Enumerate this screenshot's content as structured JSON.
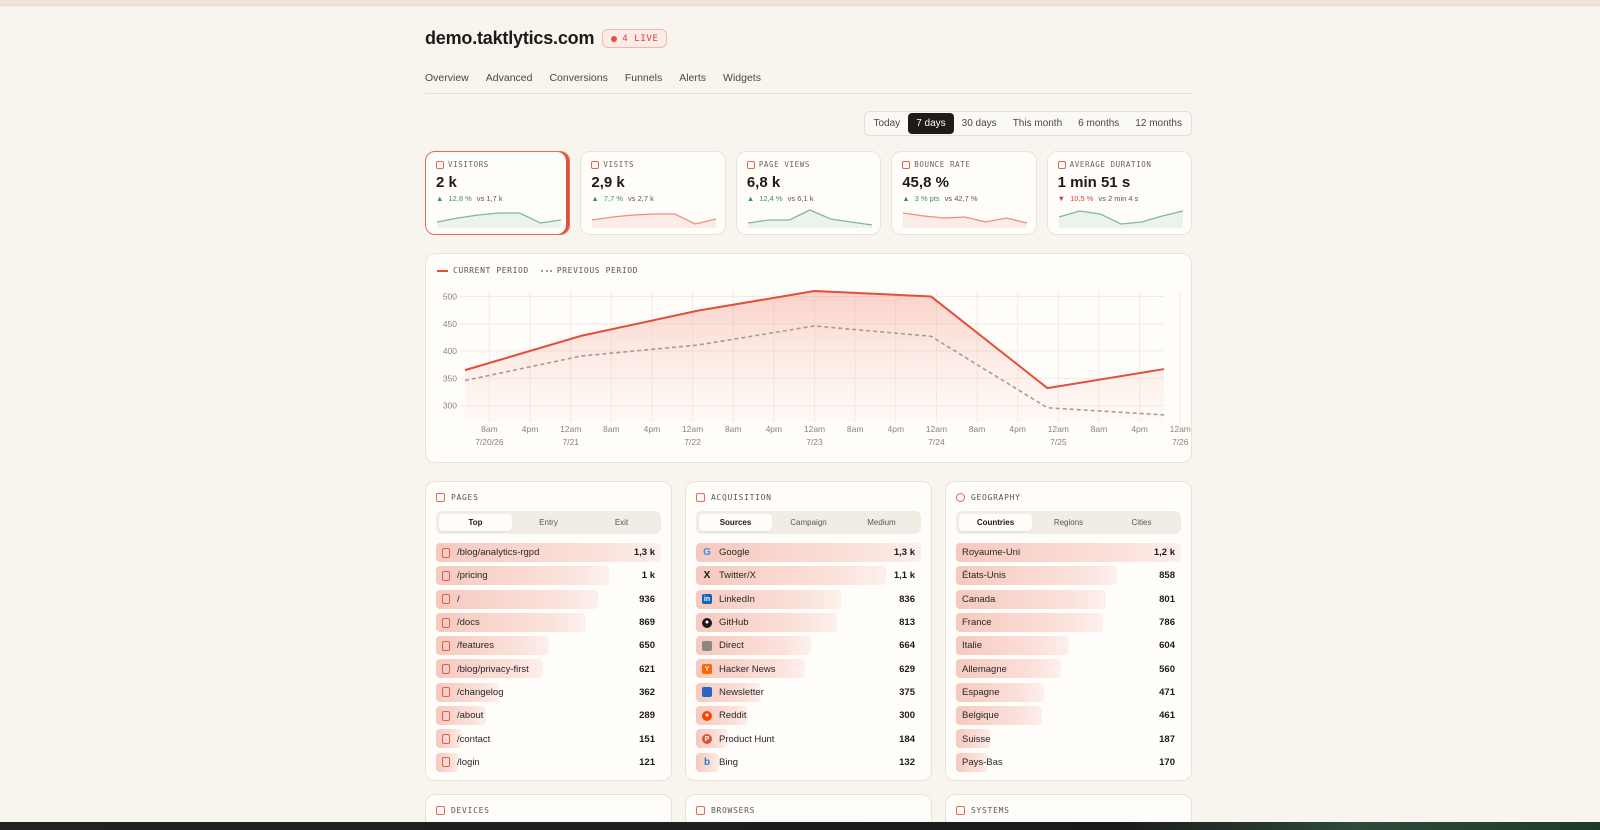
{
  "header": {
    "site": "demo.taktlytics.com",
    "live": "4 LIVE"
  },
  "nav": [
    "Overview",
    "Advanced",
    "Conversions",
    "Funnels",
    "Alerts",
    "Widgets"
  ],
  "ranges": {
    "items": [
      "Today",
      "7 days",
      "30 days",
      "This month",
      "6 months",
      "12 months"
    ],
    "selected": "7 days"
  },
  "kpis": [
    {
      "label": "VISITORS",
      "value": "2 k",
      "delta": "12,8 %",
      "direction": "up",
      "compare": "vs 1,7 k",
      "active": true,
      "spark": [
        4,
        8,
        11,
        13,
        13,
        3,
        6
      ]
    },
    {
      "label": "VISITS",
      "value": "2,9 k",
      "delta": "7,7 %",
      "direction": "up",
      "compare": "vs 2,7 k",
      "active": false,
      "spark": [
        6,
        9,
        11,
        12,
        12,
        2,
        7
      ]
    },
    {
      "label": "PAGE VIEWS",
      "value": "6,8 k",
      "delta": "12,4 %",
      "direction": "up",
      "compare": "vs 6,1 k",
      "active": false,
      "spark": [
        3,
        6,
        6,
        16,
        7,
        4,
        1
      ]
    },
    {
      "label": "BOUNCE RATE",
      "value": "45,8 %",
      "delta": "3 % pts",
      "direction": "up",
      "compare": "vs 42,7 %",
      "active": false,
      "spark": [
        13,
        10,
        8,
        9,
        4,
        8,
        3
      ]
    },
    {
      "label": "AVERAGE DURATION",
      "value": "1 min 51 s",
      "delta": "10,5 %",
      "direction": "down",
      "compare": "vs 2 min 4 s",
      "active": false,
      "spark": [
        9,
        15,
        12,
        2,
        4,
        10,
        15
      ]
    }
  ],
  "chart_data": {
    "type": "line",
    "legend": [
      "CURRENT PERIOD",
      "PREVIOUS PERIOD"
    ],
    "y_ticks": [
      300,
      350,
      400,
      450,
      500
    ],
    "ylim": [
      270,
      510
    ],
    "x_ticks": [
      {
        "time": "8am",
        "date": "7/20/26"
      },
      {
        "time": "4pm",
        "date": ""
      },
      {
        "time": "12am",
        "date": "7/21"
      },
      {
        "time": "8am",
        "date": ""
      },
      {
        "time": "4pm",
        "date": ""
      },
      {
        "time": "12am",
        "date": "7/22"
      },
      {
        "time": "8am",
        "date": ""
      },
      {
        "time": "4pm",
        "date": ""
      },
      {
        "time": "12am",
        "date": "7/23"
      },
      {
        "time": "8am",
        "date": ""
      },
      {
        "time": "4pm",
        "date": ""
      },
      {
        "time": "12am",
        "date": "7/24"
      },
      {
        "time": "8am",
        "date": ""
      },
      {
        "time": "4pm",
        "date": ""
      },
      {
        "time": "12am",
        "date": "7/25"
      },
      {
        "time": "8am",
        "date": ""
      },
      {
        "time": "4pm",
        "date": ""
      },
      {
        "time": "12am",
        "date": "7/26"
      }
    ],
    "series": [
      {
        "name": "CURRENT PERIOD",
        "color": "#e0503a",
        "x": [
          0,
          1,
          2,
          3,
          4,
          5,
          6
        ],
        "values": [
          365,
          428,
          474,
          510,
          500,
          332,
          367
        ]
      },
      {
        "name": "PREVIOUS PERIOD",
        "color": "#a59c92",
        "x": [
          0,
          1,
          2,
          3,
          4,
          5,
          6
        ],
        "values": [
          346,
          391,
          411,
          446,
          427,
          296,
          283
        ]
      }
    ]
  },
  "panels": [
    {
      "title": "PAGES",
      "tabs": [
        "Top",
        "Entry",
        "Exit"
      ],
      "active_tab": "Top",
      "rows": [
        {
          "label": "/blog/analytics-rgpd",
          "value": "1,3 k",
          "n": 1300,
          "icon": "page"
        },
        {
          "label": "/pricing",
          "value": "1 k",
          "n": 1000,
          "icon": "page"
        },
        {
          "label": "/",
          "value": "936",
          "n": 936,
          "icon": "page"
        },
        {
          "label": "/docs",
          "value": "869",
          "n": 869,
          "icon": "page"
        },
        {
          "label": "/features",
          "value": "650",
          "n": 650,
          "icon": "page"
        },
        {
          "label": "/blog/privacy-first",
          "value": "621",
          "n": 621,
          "icon": "page"
        },
        {
          "label": "/changelog",
          "value": "362",
          "n": 362,
          "icon": "page"
        },
        {
          "label": "/about",
          "value": "289",
          "n": 289,
          "icon": "page"
        },
        {
          "label": "/contact",
          "value": "151",
          "n": 151,
          "icon": "page"
        },
        {
          "label": "/login",
          "value": "121",
          "n": 121,
          "icon": "page"
        }
      ]
    },
    {
      "title": "ACQUISITION",
      "tabs": [
        "Sources",
        "Campaign",
        "Medium"
      ],
      "active_tab": "Sources",
      "rows": [
        {
          "label": "Google",
          "value": "1,3 k",
          "n": 1300,
          "icon": "google"
        },
        {
          "label": "Twitter/X",
          "value": "1,1 k",
          "n": 1100,
          "icon": "x"
        },
        {
          "label": "LinkedIn",
          "value": "836",
          "n": 836,
          "icon": "linkedin"
        },
        {
          "label": "GitHub",
          "value": "813",
          "n": 813,
          "icon": "github"
        },
        {
          "label": "Direct",
          "value": "664",
          "n": 664,
          "icon": "direct"
        },
        {
          "label": "Hacker News",
          "value": "629",
          "n": 629,
          "icon": "hn"
        },
        {
          "label": "Newsletter",
          "value": "375",
          "n": 375,
          "icon": "newsletter"
        },
        {
          "label": "Reddit",
          "value": "300",
          "n": 300,
          "icon": "reddit"
        },
        {
          "label": "Product Hunt",
          "value": "184",
          "n": 184,
          "icon": "ph"
        },
        {
          "label": "Bing",
          "value": "132",
          "n": 132,
          "icon": "bing"
        }
      ]
    },
    {
      "title": "GEOGRAPHY",
      "tabs": [
        "Countries",
        "Regions",
        "Cities"
      ],
      "active_tab": "Countries",
      "rows": [
        {
          "label": "Royaume-Uni",
          "value": "1,2 k",
          "n": 1200,
          "icon": "flag"
        },
        {
          "label": "États-Unis",
          "value": "858",
          "n": 858,
          "icon": "flag"
        },
        {
          "label": "Canada",
          "value": "801",
          "n": 801,
          "icon": "flag"
        },
        {
          "label": "France",
          "value": "786",
          "n": 786,
          "icon": "flag"
        },
        {
          "label": "Italie",
          "value": "604",
          "n": 604,
          "icon": "flag"
        },
        {
          "label": "Allemagne",
          "value": "560",
          "n": 560,
          "icon": "flag"
        },
        {
          "label": "Espagne",
          "value": "471",
          "n": 471,
          "icon": "flag"
        },
        {
          "label": "Belgique",
          "value": "461",
          "n": 461,
          "icon": "flag"
        },
        {
          "label": "Suisse",
          "value": "187",
          "n": 187,
          "icon": "flag"
        },
        {
          "label": "Pays-Bas",
          "value": "170",
          "n": 170,
          "icon": "flag"
        }
      ]
    }
  ],
  "bottom_panels": [
    "DEVICES",
    "BROWSERS",
    "SYSTEMS"
  ]
}
